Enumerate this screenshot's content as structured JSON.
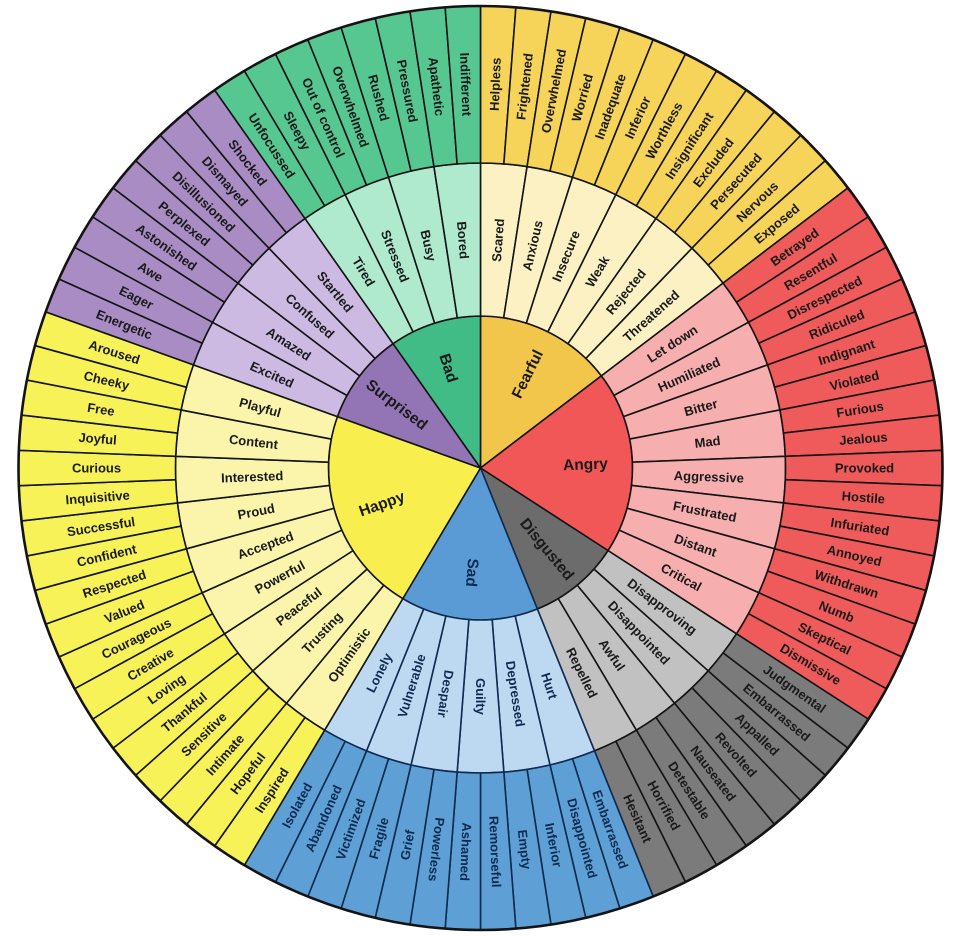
{
  "wheel": {
    "description": "Feelings wheel with three rings: core emotions, secondary emotions, tertiary emotions",
    "background_color": "#ffffff",
    "default_line_color": "#141414",
    "default_text_color": "#1a1a1a",
    "sectors": [
      {
        "name": "Fearful",
        "colors": {
          "inner": "#F2C64B",
          "middle": "#FBF1C3",
          "outer": "#F6D359"
        },
        "line_color": "#141414",
        "text_color": "#1a1a1a",
        "middle": [
          "Scared",
          "Anxious",
          "Insecure",
          "Weak",
          "Rejected",
          "Threatened"
        ],
        "outer": [
          "Helpless",
          "Frightened",
          "Overwhelmed",
          "Worried",
          "Inadequate",
          "Inferior",
          "Worthless",
          "Insignificant",
          "Excluded",
          "Persecuted",
          "Nervous",
          "Exposed"
        ]
      },
      {
        "name": "Angry",
        "colors": {
          "inner": "#F15757",
          "middle": "#F6AEAE",
          "outer": "#EF5A5A"
        },
        "line_color": "#141414",
        "text_color": "#1a1a1a",
        "middle": [
          "Let down",
          "Humiliated",
          "Bitter",
          "Mad",
          "Aggressive",
          "Frustrated",
          "Distant",
          "Critical"
        ],
        "outer": [
          "Betrayed",
          "Resentful",
          "Disrespected",
          "Ridiculed",
          "Indignant",
          "Violated",
          "Furious",
          "Jealous",
          "Provoked",
          "Hostile",
          "Infuriated",
          "Annoyed",
          "Withdrawn",
          "Numb",
          "Skeptical",
          "Dismissive"
        ]
      },
      {
        "name": "Disgusted",
        "colors": {
          "inner": "#6C6C6C",
          "middle": "#C1C1C1",
          "outer": "#7B7B7B"
        },
        "line_color": "#141414",
        "text_color": "#1a1a1a",
        "middle": [
          "Disapproving",
          "Disappointed",
          "Awful",
          "Repelled"
        ],
        "outer": [
          "Judgmental",
          "Embarrassed",
          "Appalled",
          "Revolted",
          "Nauseated",
          "Detestable",
          "Horrified",
          "Hesitant"
        ]
      },
      {
        "name": "Sad",
        "colors": {
          "inner": "#5B9BD5",
          "middle": "#BCD9F1",
          "outer": "#5E9FD6"
        },
        "line_color": "#0f2b50",
        "text_color": "#0f2b50",
        "middle": [
          "Hurt",
          "Depressed",
          "Guilty",
          "Despair",
          "Vulnerable",
          "Lonely"
        ],
        "outer": [
          "Embarrassed",
          "Disappointed",
          "Inferior",
          "Empty",
          "Remorseful",
          "Ashamed",
          "Powerless",
          "Grief",
          "Fragile",
          "Victimized",
          "Abandoned",
          "Isolated"
        ]
      },
      {
        "name": "Happy",
        "colors": {
          "inner": "#F8EE4E",
          "middle": "#FAF5AB",
          "outer": "#F7F258"
        },
        "line_color": "#141414",
        "text_color": "#1a1a1a",
        "middle": [
          "Optimistic",
          "Trusting",
          "Peaceful",
          "Powerful",
          "Accepted",
          "Proud",
          "Interested",
          "Content",
          "Playful"
        ],
        "outer": [
          "Inspired",
          "Hopeful",
          "Intimate",
          "Sensitive",
          "Thankful",
          "Loving",
          "Creative",
          "Courageous",
          "Valued",
          "Respected",
          "Confident",
          "Successful",
          "Inquisitive",
          "Curious",
          "Joyful",
          "Free",
          "Cheeky",
          "Aroused"
        ]
      },
      {
        "name": "Surprised",
        "colors": {
          "inner": "#9374B4",
          "middle": "#CDBAE3",
          "outer": "#A88CC3"
        },
        "line_color": "#141414",
        "text_color": "#1a1a1a",
        "middle": [
          "Excited",
          "Amazed",
          "Confused",
          "Startled"
        ],
        "outer": [
          "Energetic",
          "Eager",
          "Awe",
          "Astonished",
          "Perplexed",
          "Disillusioned",
          "Dismayed",
          "Shocked"
        ]
      },
      {
        "name": "Bad",
        "colors": {
          "inner": "#41BC86",
          "middle": "#AFE9CE",
          "outer": "#56C791"
        },
        "line_color": "#141414",
        "text_color": "#1a1a1a",
        "middle": [
          "Tired",
          "Stressed",
          "Busy",
          "Bored"
        ],
        "outer": [
          "Unfocussed",
          "Sleepy",
          "Out of control",
          "Overwhelmed",
          "Rushed",
          "Pressured",
          "Apathetic",
          "Indifferent"
        ]
      }
    ]
  }
}
